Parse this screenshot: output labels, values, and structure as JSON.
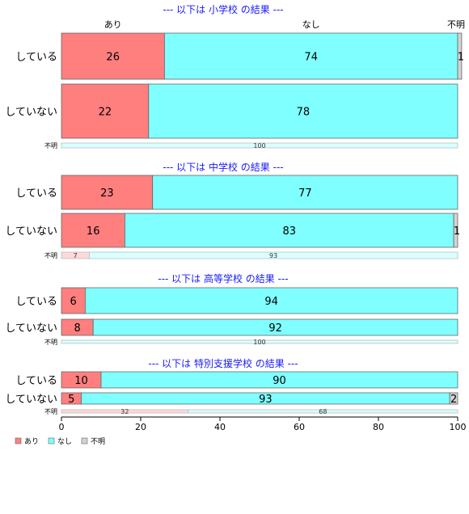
{
  "chart_data": {
    "type": "bar",
    "orientation": "horizontal",
    "stacked": true,
    "percent": true,
    "xlim": [
      0,
      100
    ],
    "xticks": [
      0,
      20,
      40,
      60,
      80,
      100
    ],
    "legend_position": "bottom-left",
    "category_labels": [
      "あり",
      "なし",
      "不明"
    ],
    "colors": {
      "あり": "#ff7f7f",
      "なし": "#7fffff",
      "不明": "#d3d3d3"
    },
    "groups": [
      {
        "title": "--- 以下は 小学校 の結果 ---",
        "show_top_labels": true,
        "rows": [
          {
            "label": "している",
            "values": [
              26,
              74,
              1
            ]
          },
          {
            "label": "していない",
            "values": [
              22,
              78,
              0
            ]
          },
          {
            "label": "不明",
            "values": [
              0,
              100,
              0
            ]
          }
        ]
      },
      {
        "title": "--- 以下は 中学校 の結果 ---",
        "rows": [
          {
            "label": "している",
            "values": [
              23,
              77,
              0
            ]
          },
          {
            "label": "していない",
            "values": [
              16,
              83,
              1
            ]
          },
          {
            "label": "不明",
            "values": [
              7,
              93,
              0
            ]
          }
        ]
      },
      {
        "title": "--- 以下は 高等学校 の結果 ---",
        "rows": [
          {
            "label": "している",
            "values": [
              6,
              94,
              0
            ]
          },
          {
            "label": "していない",
            "values": [
              8,
              92,
              0
            ]
          },
          {
            "label": "不明",
            "values": [
              0,
              100,
              0
            ]
          }
        ]
      },
      {
        "title": "--- 以下は 特別支援学校 の結果 ---",
        "rows": [
          {
            "label": "している",
            "values": [
              10,
              90,
              0
            ]
          },
          {
            "label": "していない",
            "values": [
              5,
              93,
              2
            ]
          },
          {
            "label": "不明",
            "values": [
              32,
              68,
              0
            ]
          }
        ]
      }
    ]
  }
}
